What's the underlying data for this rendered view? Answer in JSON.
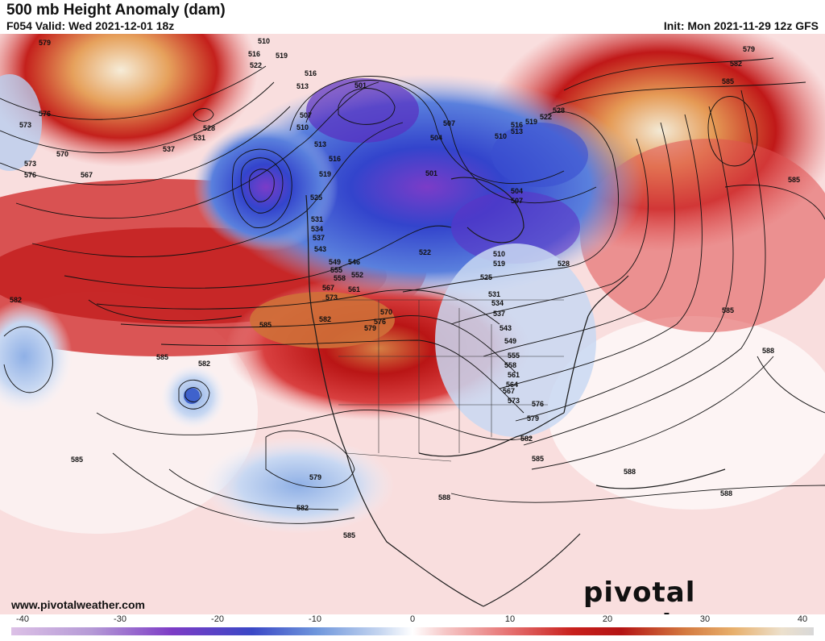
{
  "header": {
    "title": "500 mb Height Anomaly (dam)",
    "valid": "F054 Valid: Wed 2021-12-01 18z",
    "init": "Init: Mon 2021-11-29 12z GFS"
  },
  "footer": {
    "website": "www.pivotalweather.com",
    "brand": "pivotal weather"
  },
  "colorbar": {
    "ticks": [
      "-40",
      "-30",
      "-20",
      "-10",
      "0",
      "10",
      "20",
      "30",
      "40"
    ],
    "colors": {
      "strong_negative": "#c9a0dc",
      "negative": "#3050c8",
      "weak_negative": "#bcd0ee",
      "neutral": "#ffffff",
      "weak_positive": "#f6c9c9",
      "positive": "#c81e1e",
      "strong_positive": "#e0a060",
      "extreme_positive": "#f4e6d2"
    }
  },
  "contour_labels": [
    "579",
    "576",
    "573",
    "570",
    "567",
    "573",
    "576",
    "528",
    "531",
    "537",
    "522",
    "516",
    "519",
    "510",
    "513",
    "516",
    "501",
    "507",
    "510",
    "513",
    "516",
    "519",
    "525",
    "531",
    "534",
    "537",
    "543",
    "549",
    "546",
    "552",
    "555",
    "558",
    "561",
    "567",
    "573",
    "570",
    "576",
    "579",
    "582",
    "585",
    "528",
    "522",
    "519",
    "516",
    "513",
    "507",
    "504",
    "510",
    "501",
    "504",
    "507",
    "510",
    "519",
    "522",
    "528",
    "525",
    "531",
    "534",
    "537",
    "543",
    "549",
    "555",
    "558",
    "561",
    "564",
    "567",
    "573",
    "576",
    "579",
    "582",
    "585",
    "588",
    "579",
    "582",
    "585",
    "582",
    "585",
    "585",
    "588",
    "588",
    "585",
    "582",
    "579",
    "585",
    "588",
    "582",
    "585"
  ]
}
